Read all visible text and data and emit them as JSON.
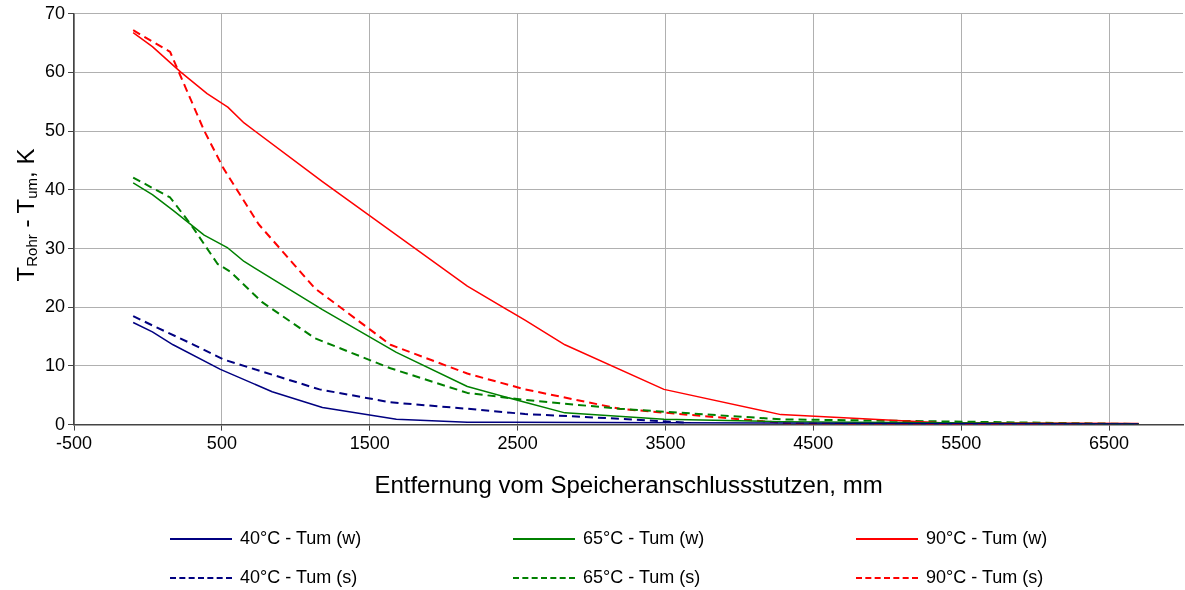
{
  "chart_data": {
    "type": "line",
    "xlabel": "Entfernung vom Speicheranschlussstutzen, mm",
    "ylabel": "T$_{Rohr}$ - T$_{um}$, K",
    "xlim": [
      -500,
      7000
    ],
    "xticks": [
      -500,
      500,
      1500,
      2500,
      3500,
      4500,
      5500,
      6500
    ],
    "ylim": [
      0,
      70
    ],
    "yticks": [
      0,
      10,
      20,
      30,
      40,
      50,
      60,
      70
    ],
    "grid": true,
    "legend": "bottom",
    "marker": "none",
    "series": [
      {
        "name": "40°C - Tum (w)",
        "color": "#000080",
        "line_style": "solid",
        "x": [
          -100,
          30,
          170,
          490,
          840,
          1180,
          1680,
          2160,
          6700
        ],
        "values": [
          17.4,
          15.8,
          13.6,
          9.4,
          5.6,
          2.9,
          0.9,
          0.4,
          0.1
        ]
      },
      {
        "name": "65°C - Tum (w)",
        "color": "#008000",
        "line_style": "solid",
        "x": [
          -100,
          30,
          170,
          380,
          540,
          650,
          1180,
          1680,
          2160,
          2550,
          2820,
          3490,
          4280,
          6700
        ],
        "values": [
          41.2,
          39.2,
          36.5,
          32.3,
          30.1,
          27.8,
          19.6,
          12.3,
          6.5,
          3.8,
          2.0,
          0.9,
          0.5,
          0.1
        ]
      },
      {
        "name": "90°C - Tum (w)",
        "color": "#ff0000",
        "line_style": "solid",
        "x": [
          -100,
          30,
          220,
          400,
          540,
          650,
          1180,
          2160,
          2550,
          2820,
          3490,
          4280,
          5360,
          6700
        ],
        "values": [
          66.8,
          64.4,
          60.1,
          56.4,
          54.1,
          51.4,
          41.4,
          23.6,
          17.8,
          13.6,
          6.0,
          1.7,
          0.3,
          0.2
        ]
      },
      {
        "name": "40°C - Tum (s)",
        "color": "#000080",
        "line_style": "dashed",
        "x": [
          -100,
          30,
          310,
          510,
          1160,
          1640,
          2160,
          2550,
          3190,
          3650
        ],
        "values": [
          18.5,
          16.9,
          13.6,
          11.1,
          6.0,
          3.8,
          2.7,
          1.8,
          1.0,
          0.3
        ]
      },
      {
        "name": "65°C - Tum (s)",
        "color": "#008000",
        "line_style": "dashed",
        "x": [
          -100,
          150,
          290,
          470,
          560,
          770,
          1130,
          1640,
          2160,
          2550,
          3190,
          4280,
          6700
        ],
        "values": [
          42.1,
          38.7,
          34.1,
          27.4,
          26.0,
          20.9,
          14.7,
          9.6,
          5.4,
          4.2,
          2.7,
          0.9,
          0.1
        ]
      },
      {
        "name": "90°C - Tum (s)",
        "color": "#ff0000",
        "line_style": "dashed",
        "x": [
          -100,
          150,
          380,
          510,
          750,
          1130,
          1640,
          2160,
          2550,
          3190,
          4330,
          6700
        ],
        "values": [
          67.2,
          63.5,
          50.1,
          43.7,
          34.1,
          23.2,
          13.6,
          8.7,
          6.0,
          2.7,
          0.2,
          0.0
        ]
      }
    ]
  }
}
